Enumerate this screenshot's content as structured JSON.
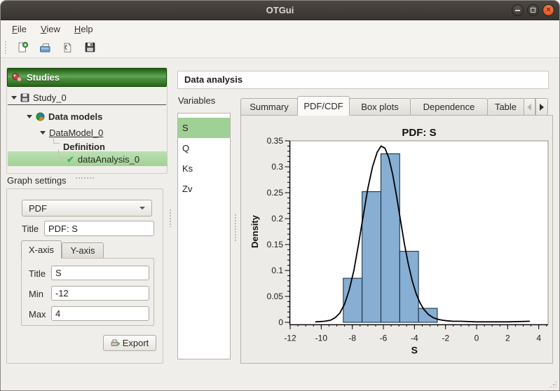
{
  "window": {
    "title": "OTGui",
    "controls": [
      {
        "name": "minimize"
      },
      {
        "name": "maximize"
      },
      {
        "name": "close"
      }
    ]
  },
  "menubar": {
    "items": [
      {
        "label": "File"
      },
      {
        "label": "View"
      },
      {
        "label": "Help"
      }
    ]
  },
  "toolbar": {
    "buttons": [
      {
        "name": "new-study",
        "icon": "new-document-icon"
      },
      {
        "name": "open-study",
        "icon": "open-folder-icon"
      },
      {
        "name": "import-python-script",
        "icon": "import-script-icon"
      },
      {
        "name": "save-study",
        "icon": "save-icon"
      }
    ]
  },
  "sidebar": {
    "header_label": "Studies",
    "tree": [
      {
        "label": "Study_0",
        "icon": "floppy-icon",
        "selected": false
      },
      {
        "label": "Data models",
        "icon": "data-models-icon",
        "selected": false
      },
      {
        "label": "DataModel_0",
        "icon": "",
        "selected": false
      },
      {
        "label": "Definition",
        "icon": "",
        "selected": false
      },
      {
        "label": "dataAnalysis_0",
        "icon": "check-icon",
        "selected": true
      }
    ]
  },
  "graph_settings": {
    "section_label": "Graph settings",
    "plot_type_value": "PDF",
    "title_label": "Title",
    "title_value": "PDF: S",
    "axis_tabs": [
      {
        "label": "X-axis",
        "active": true
      },
      {
        "label": "Y-axis",
        "active": false
      }
    ],
    "x_axis": {
      "title_label": "Title",
      "title_value": "S",
      "min_label": "Min",
      "min_value": "-12",
      "max_label": "Max",
      "max_value": "4"
    },
    "export_label": "Export"
  },
  "main": {
    "header_label": "Data analysis",
    "variables_label": "Variables",
    "variables": [
      {
        "label": "S",
        "selected": true
      },
      {
        "label": "Q",
        "selected": false
      },
      {
        "label": "Ks",
        "selected": false
      },
      {
        "label": "Zv",
        "selected": false
      }
    ],
    "tabs": [
      {
        "label": "Summary",
        "active": false
      },
      {
        "label": "PDF/CDF",
        "active": true
      },
      {
        "label": "Box plots",
        "active": false
      },
      {
        "label": "Dependence",
        "active": false
      },
      {
        "label": "Table",
        "active": false
      }
    ]
  },
  "chart_data": {
    "type": "histogram+kde-line",
    "title": "PDF: S",
    "xlabel": "S",
    "ylabel": "Density",
    "xlim": [
      -12,
      4
    ],
    "xlim_display": [
      -12,
      4.6
    ],
    "ylim": [
      0,
      0.35
    ],
    "grid": false,
    "legend": "none",
    "xticks": [
      -12,
      -10,
      -8,
      -6,
      -4,
      -2,
      0,
      2,
      4
    ],
    "xtick_labels": [
      "-12",
      "-10",
      "-8",
      "-6",
      "-4",
      "-2",
      "0",
      "2",
      "4"
    ],
    "x_minor_tick_step": 0.5,
    "yticks": [
      0,
      0.05,
      0.1,
      0.15,
      0.2,
      0.25,
      0.3,
      0.35
    ],
    "ytick_labels": [
      "0",
      "0.05",
      "0.1",
      "0.15",
      "0.2",
      "0.25",
      "0.3",
      "0.35"
    ],
    "y_minor_tick_step": 0.01,
    "histogram": {
      "bin_edges": [
        -8.58,
        -7.37,
        -6.16,
        -4.95,
        -3.74,
        -2.53
      ],
      "densities": [
        0.085,
        0.252,
        0.325,
        0.137,
        0.027
      ],
      "fill": "#87aed3",
      "stroke": "#10253a"
    },
    "kde_curve": {
      "color": "#000000",
      "points": [
        [
          -10.35,
          0.001
        ],
        [
          -9.8,
          0.002
        ],
        [
          -9.4,
          0.004
        ],
        [
          -9.1,
          0.009
        ],
        [
          -8.8,
          0.018
        ],
        [
          -8.5,
          0.035
        ],
        [
          -8.2,
          0.062
        ],
        [
          -7.9,
          0.1
        ],
        [
          -7.6,
          0.15
        ],
        [
          -7.3,
          0.205
        ],
        [
          -7.0,
          0.258
        ],
        [
          -6.7,
          0.3
        ],
        [
          -6.4,
          0.328
        ],
        [
          -6.15,
          0.34
        ],
        [
          -5.9,
          0.336
        ],
        [
          -5.65,
          0.317
        ],
        [
          -5.4,
          0.285
        ],
        [
          -5.15,
          0.243
        ],
        [
          -4.9,
          0.197
        ],
        [
          -4.65,
          0.152
        ],
        [
          -4.4,
          0.113
        ],
        [
          -4.15,
          0.081
        ],
        [
          -3.9,
          0.056
        ],
        [
          -3.65,
          0.038
        ],
        [
          -3.4,
          0.025
        ],
        [
          -3.1,
          0.015
        ],
        [
          -2.8,
          0.009
        ],
        [
          -2.5,
          0.006
        ],
        [
          -2.2,
          0.004
        ],
        [
          -1.9,
          0.003
        ],
        [
          -1.5,
          0.002
        ],
        [
          -1.0,
          0.002
        ],
        [
          0.0,
          0.001
        ],
        [
          1.0,
          0.001
        ],
        [
          2.0,
          0.001
        ],
        [
          3.4,
          0.002
        ]
      ]
    }
  },
  "colors": {
    "titlebar_bg": "#3e3a36",
    "close_button_orange": "#e95420",
    "studies_header_green_dark": "#1d5a0f",
    "studies_header_green_light": "#64a758",
    "list_selection_green": "#9fd096",
    "tree_selection_green": "#a0d196",
    "histogram_fill": "#87aed3",
    "window_bg": "#f0eeea"
  }
}
